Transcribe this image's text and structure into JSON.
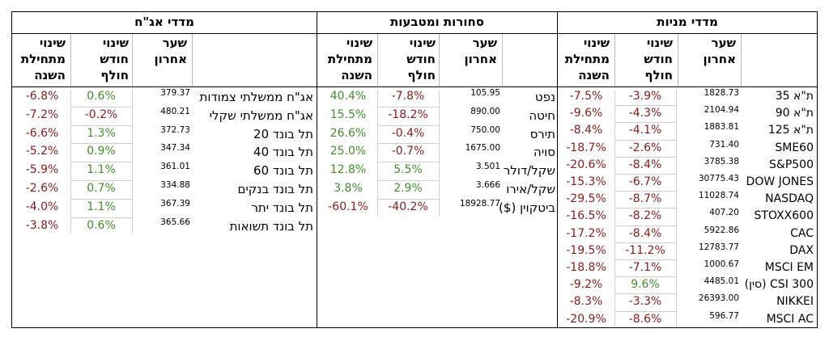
{
  "headers": {
    "last_price": [
      "שער",
      "אחרון"
    ],
    "month_change": [
      "שינוי",
      "חודש",
      "חולף"
    ],
    "ytd_change": [
      "שינוי",
      "מתחילת",
      "השנה"
    ]
  },
  "equities": {
    "title": "מדדי מניות",
    "rows": [
      {
        "name": "ת\"א 35",
        "price": "1828.73",
        "month": "-3.9%",
        "ytd": "-7.5%"
      },
      {
        "name": "ת\"א 90",
        "price": "2104.94",
        "month": "-4.3%",
        "ytd": "-9.6%"
      },
      {
        "name": "ת\"א 125",
        "price": "1883.81",
        "month": "-4.1%",
        "ytd": "-8.4%"
      },
      {
        "name": "SME60",
        "price": "731.40",
        "month": "-2.6%",
        "ytd": "-18.7%"
      },
      {
        "name": "S&P500",
        "price": "3785.38",
        "month": "-8.4%",
        "ytd": "-20.6%"
      },
      {
        "name": "DOW JONES",
        "price": "30775.43",
        "month": "-6.7%",
        "ytd": "-15.3%"
      },
      {
        "name": "NASDAQ",
        "price": "11028.74",
        "month": "-8.7%",
        "ytd": "-29.5%"
      },
      {
        "name": "STOXX600",
        "price": "407.20",
        "month": "-8.2%",
        "ytd": "-16.5%"
      },
      {
        "name": "CAC",
        "price": "5922.86",
        "month": "-8.4%",
        "ytd": "-17.2%"
      },
      {
        "name": "DAX",
        "price": "12783.77",
        "month": "-11.2%",
        "ytd": "-19.5%"
      },
      {
        "name": "MSCI EM",
        "price": "1000.67",
        "month": "-7.1%",
        "ytd": "-18.8%"
      },
      {
        "name": "CSI 300 (סין)",
        "price": "4485.01",
        "month": "9.6%",
        "ytd": "-9.2%"
      },
      {
        "name": "NIKKEI",
        "price": "26393.00",
        "month": "-3.3%",
        "ytd": "-8.3%"
      },
      {
        "name": "MSCI AC",
        "price": "596.77",
        "month": "-8.6%",
        "ytd": "-20.9%"
      }
    ]
  },
  "commodities": {
    "title": "סחורות ומטבעות",
    "rows": [
      {
        "name": "נפט",
        "price": "105.95",
        "month": "-7.8%",
        "ytd": "40.4%"
      },
      {
        "name": "חיטה",
        "price": "890.00",
        "month": "-18.2%",
        "ytd": "15.5%"
      },
      {
        "name": "תירס",
        "price": "750.00",
        "month": "-0.4%",
        "ytd": "26.6%"
      },
      {
        "name": "סויה",
        "price": "1675.00",
        "month": "-0.7%",
        "ytd": "25.0%"
      },
      {
        "name": "שקל/דולר",
        "price": "3.501",
        "month": "5.5%",
        "ytd": "12.8%"
      },
      {
        "name": "שקל/אירו",
        "price": "3.666",
        "month": "2.9%",
        "ytd": "3.8%"
      },
      {
        "name": "ביטקוין ($)",
        "price": "18928.77",
        "month": "-40.2%",
        "ytd": "-60.1%"
      }
    ]
  },
  "bonds": {
    "title": "מדדי אג\"ח",
    "rows": [
      {
        "name": "אג\"ח ממשלתי צמודות",
        "price": "379.37",
        "month": "0.6%",
        "ytd": "-6.8%"
      },
      {
        "name": "אג\"ח ממשלתי שקלי",
        "price": "480.21",
        "month": "-0.2%",
        "ytd": "-7.2%"
      },
      {
        "name": "תל בונד 20",
        "price": "372.73",
        "month": "1.3%",
        "ytd": "-6.6%"
      },
      {
        "name": "תל בונד 40",
        "price": "347.34",
        "month": "0.9%",
        "ytd": "-5.2%"
      },
      {
        "name": "תל בונד 60",
        "price": "361.01",
        "month": "1.1%",
        "ytd": "-5.9%"
      },
      {
        "name": "תל בונד בנקים",
        "price": "334.88",
        "month": "0.7%",
        "ytd": "-2.6%"
      },
      {
        "name": "תל בונד יתר",
        "price": "367.39",
        "month": "1.1%",
        "ytd": "-4.0%"
      },
      {
        "name": "תל בונד תשואות",
        "price": "365.66",
        "month": "0.6%",
        "ytd": "-3.8%"
      }
    ]
  },
  "colors": {
    "negative": "#8b1a1a",
    "positive": "#3f8f2a"
  }
}
